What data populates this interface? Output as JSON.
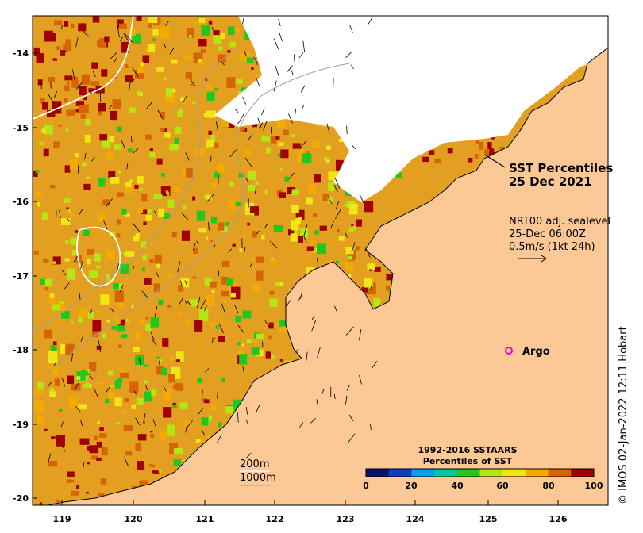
{
  "map": {
    "title_line1": "SST Percentiles",
    "title_line2": "25 Dec 2021",
    "current_note": {
      "line1": "NRT00 adj. sealevel",
      "line2": "25-Dec 06:00Z",
      "line3": "0.5m/s (1kt 24h)"
    },
    "argo_label": "Argo",
    "depth_contours": [
      "200m",
      "1000m"
    ],
    "credit": "© IMOS 02-Jan-2022 12:11 Hobart",
    "lat_ticks": [
      "-14",
      "-15",
      "-16",
      "-17",
      "-18",
      "-19",
      "-20"
    ],
    "lon_ticks": [
      "119",
      "120",
      "121",
      "122",
      "123",
      "124",
      "125",
      "126"
    ],
    "colorbar": {
      "title_line1": "1992-2016 SSTAARS",
      "title_line2": "Percentiles of SST",
      "tick_labels": [
        "0",
        "20",
        "40",
        "60",
        "80",
        "100"
      ],
      "colors": [
        "#0a1470",
        "#0a3cc8",
        "#00a0f0",
        "#00c8a0",
        "#1ec81e",
        "#b4e614",
        "#f0e614",
        "#f5aa00",
        "#d76400",
        "#a00000"
      ]
    },
    "colors": {
      "land": "#fcc896",
      "cloud": "#ffffff",
      "argo": "#e600e6"
    }
  }
}
